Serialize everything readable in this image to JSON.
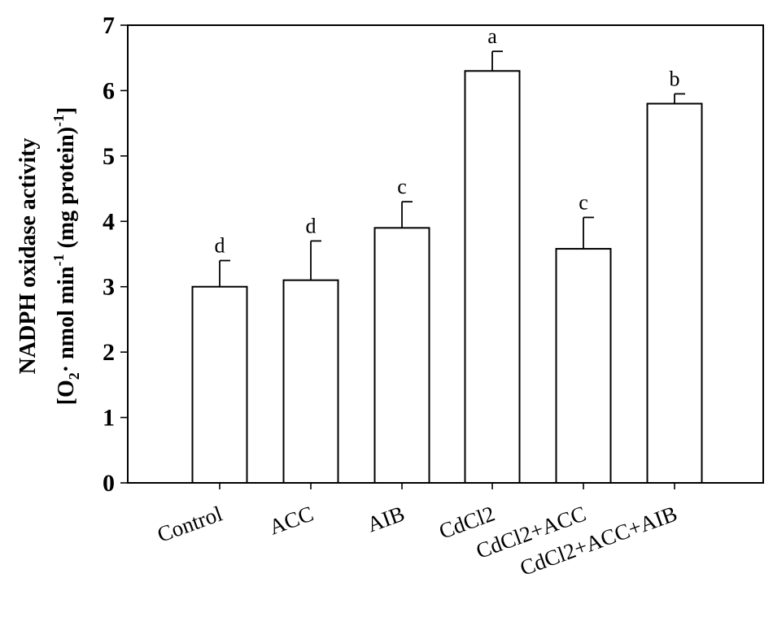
{
  "chart_data": {
    "type": "bar",
    "categories": [
      "Control",
      "ACC",
      "AIB",
      "CdCl2",
      "CdCl2+ACC",
      "CdCl2+ACC+AIB"
    ],
    "values": [
      3.0,
      3.1,
      3.9,
      6.3,
      3.58,
      5.8
    ],
    "error_upper": [
      0.4,
      0.6,
      0.4,
      0.3,
      0.48,
      0.15
    ],
    "significance": [
      "d",
      "d",
      "c",
      "a",
      "c",
      "b"
    ],
    "ylabel_line1": "NADPH oxidase activity",
    "ylabel_line2": {
      "open": "[O",
      "sub": "2",
      "mid1": "·  nmol min",
      "sup1": "-1",
      "mid2": " (mg protein)",
      "sup2": "-1",
      "close": "]"
    },
    "yticks": [
      "0",
      "1",
      "2",
      "3",
      "4",
      "5",
      "6",
      "7"
    ],
    "ylim": [
      0,
      7
    ],
    "grid": false,
    "legend": "none"
  }
}
